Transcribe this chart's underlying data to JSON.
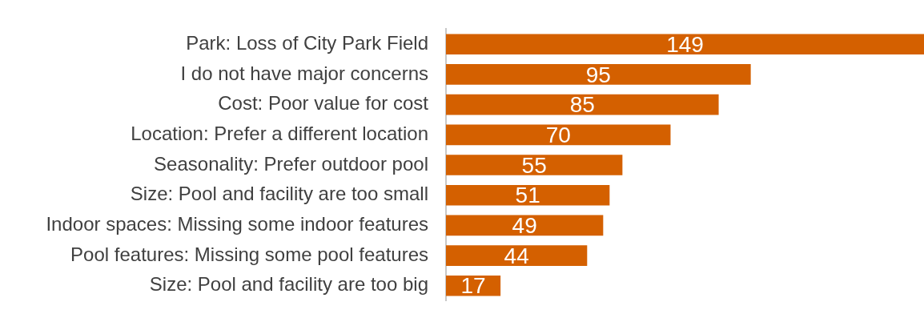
{
  "chart_data": {
    "type": "bar",
    "orientation": "horizontal",
    "categories": [
      "Park: Loss of City Park Field",
      "I do not have major concerns",
      "Cost: Poor value for cost",
      "Location: Prefer a different location",
      "Seasonality: Prefer outdoor pool",
      "Size: Pool and facility are too small",
      "Indoor spaces: Missing some indoor features",
      "Pool features: Missing some pool features",
      "Size: Pool and facility are too big"
    ],
    "values": [
      149,
      95,
      85,
      70,
      55,
      51,
      49,
      44,
      17
    ],
    "color": "#d46000",
    "data_labels": true,
    "legend": false
  }
}
